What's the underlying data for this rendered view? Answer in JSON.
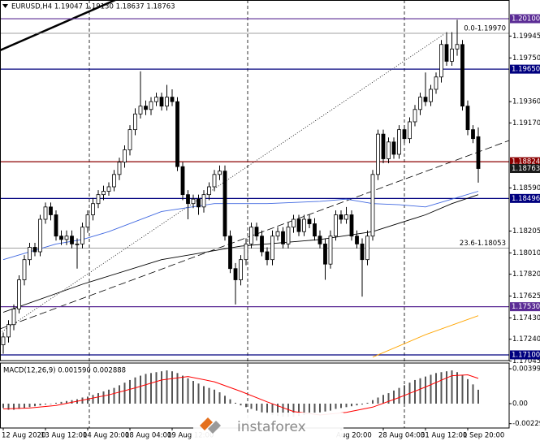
{
  "chart_data": [
    {
      "type": "candlestick",
      "title": "EURUSD,H4  1.19047 1.19130 1.18637 1.18763",
      "categories": [
        "12 Aug 2020",
        null,
        null,
        null,
        null,
        null,
        null,
        null,
        "13 Aug 12:00",
        null,
        null,
        null,
        null,
        null,
        null,
        null,
        "14 Aug 20:00",
        null,
        null,
        null,
        null,
        null,
        null,
        null,
        "18 Aug 04:00",
        null,
        null,
        null,
        null,
        null,
        null,
        null,
        "19 Aug 12:00",
        null,
        null,
        null,
        null,
        null,
        null,
        null,
        null,
        null,
        null,
        null,
        null,
        null,
        null,
        null,
        null,
        null,
        null,
        null,
        null,
        null,
        null,
        null,
        null,
        null,
        null,
        null,
        null,
        null,
        null,
        null,
        "Aug 20:00",
        null,
        null,
        null,
        null,
        null,
        null,
        null,
        "28 Aug 04:00",
        null,
        null,
        null,
        null,
        null,
        null,
        null,
        "31 Aug 12:00",
        null,
        null,
        null,
        null,
        null,
        null,
        null,
        "1 Sep 20:00",
        null,
        null
      ],
      "open": [
        1.1719,
        1.1726,
        1.1737,
        1.1751,
        1.1777,
        1.1795,
        1.1806,
        1.1802,
        1.1831,
        1.1842,
        1.1835,
        1.1816,
        1.1813,
        1.1816,
        1.1809,
        1.1809,
        1.1824,
        1.1835,
        1.1845,
        1.1853,
        1.1856,
        1.186,
        1.1871,
        1.1882,
        1.1893,
        1.1911,
        1.1925,
        1.1932,
        1.1929,
        1.1936,
        1.194,
        1.1932,
        1.194,
        1.1936,
        1.1878,
        1.1853,
        1.1845,
        1.1849,
        1.1842,
        1.1853,
        1.186,
        1.1871,
        1.1874,
        1.1816,
        1.1787,
        1.1777,
        1.1795,
        1.1809,
        1.1824,
        1.1816,
        1.1802,
        1.1795,
        1.1816,
        1.182,
        1.1809,
        1.1824,
        1.1831,
        1.182,
        1.1831,
        1.1827,
        1.1816,
        1.1809,
        1.1791,
        1.1816,
        1.1835,
        1.1831,
        1.1835,
        1.1816,
        1.1809,
        1.1795,
        1.1816,
        1.1871,
        1.1907,
        1.1885,
        1.19,
        1.1889,
        1.1911,
        1.1903,
        1.1918,
        1.1929,
        1.194,
        1.1936,
        1.1947,
        1.1958,
        1.1987,
        1.1972,
        1.1983,
        1.1987,
        1.1932,
        1.1911,
        1.19047
      ],
      "high": [
        1.173,
        1.1741,
        1.1755,
        1.1781,
        1.1799,
        1.181,
        1.181,
        1.1835,
        1.1846,
        1.1846,
        1.1839,
        1.1821,
        1.1821,
        1.1821,
        1.1814,
        1.1828,
        1.1839,
        1.185,
        1.1857,
        1.1861,
        1.1864,
        1.1875,
        1.1886,
        1.1897,
        1.1915,
        1.193,
        1.1963,
        1.1937,
        1.194,
        1.1944,
        1.1944,
        1.1951,
        1.1947,
        1.194,
        1.1882,
        1.1857,
        1.1853,
        1.1853,
        1.1857,
        1.1864,
        1.1875,
        1.1879,
        1.1879,
        1.1821,
        1.1792,
        1.1799,
        1.1814,
        1.1828,
        1.1828,
        1.1821,
        1.1806,
        1.1821,
        1.1824,
        1.1824,
        1.1828,
        1.1835,
        1.1835,
        1.1835,
        1.1835,
        1.1832,
        1.1821,
        1.1814,
        1.1821,
        1.1839,
        1.1839,
        1.1842,
        1.1839,
        1.1821,
        1.1814,
        1.1821,
        1.1875,
        1.1911,
        1.1911,
        1.1904,
        1.1904,
        1.1915,
        1.1915,
        1.1922,
        1.1933,
        1.1944,
        1.1962,
        1.1951,
        1.1962,
        1.1991,
        1.1998,
        1.1998,
        1.2009,
        1.1991,
        1.1937,
        1.1915,
        1.1913
      ],
      "low": [
        1.1711,
        1.1721,
        1.1732,
        1.1747,
        1.1772,
        1.179,
        1.1798,
        1.1798,
        1.1827,
        1.183,
        1.1812,
        1.1808,
        1.1808,
        1.1805,
        1.1787,
        1.1805,
        1.1819,
        1.183,
        1.1841,
        1.1848,
        1.1852,
        1.1856,
        1.1866,
        1.1877,
        1.1888,
        1.1906,
        1.1921,
        1.1924,
        1.1924,
        1.1932,
        1.1928,
        1.1928,
        1.1932,
        1.1874,
        1.1848,
        1.1831,
        1.1841,
        1.1835,
        1.1837,
        1.1848,
        1.1856,
        1.1866,
        1.1812,
        1.1783,
        1.1755,
        1.1772,
        1.179,
        1.1805,
        1.1812,
        1.1798,
        1.179,
        1.179,
        1.1812,
        1.1805,
        1.1805,
        1.1819,
        1.1816,
        1.1816,
        1.1823,
        1.1812,
        1.1805,
        1.1777,
        1.1787,
        1.1812,
        1.1827,
        1.1827,
        1.1812,
        1.1805,
        1.1762,
        1.179,
        1.1812,
        1.1866,
        1.1881,
        1.1881,
        1.1885,
        1.1885,
        1.1899,
        1.1899,
        1.1914,
        1.1924,
        1.1932,
        1.1932,
        1.1943,
        1.1953,
        1.1968,
        1.1968,
        1.1977,
        1.1928,
        1.1906,
        1.1899,
        1.18637
      ],
      "close": [
        1.1726,
        1.1737,
        1.1751,
        1.1777,
        1.1795,
        1.1806,
        1.1802,
        1.1831,
        1.1842,
        1.1835,
        1.1816,
        1.1813,
        1.1816,
        1.1809,
        1.1809,
        1.1824,
        1.1835,
        1.1845,
        1.1853,
        1.1856,
        1.186,
        1.1871,
        1.1882,
        1.1893,
        1.1911,
        1.1925,
        1.1932,
        1.1929,
        1.1936,
        1.194,
        1.1932,
        1.194,
        1.1936,
        1.1878,
        1.1853,
        1.1845,
        1.1849,
        1.1842,
        1.1853,
        1.186,
        1.1871,
        1.1874,
        1.1816,
        1.1787,
        1.1777,
        1.1795,
        1.1809,
        1.1824,
        1.1816,
        1.1802,
        1.1795,
        1.1816,
        1.182,
        1.1809,
        1.1824,
        1.1831,
        1.182,
        1.1831,
        1.1827,
        1.1816,
        1.1809,
        1.1791,
        1.1816,
        1.1835,
        1.1831,
        1.1835,
        1.1816,
        1.1809,
        1.1795,
        1.1816,
        1.1871,
        1.1907,
        1.1885,
        1.19,
        1.1889,
        1.1911,
        1.1903,
        1.1918,
        1.1929,
        1.194,
        1.1936,
        1.1947,
        1.1958,
        1.1987,
        1.1972,
        1.1983,
        1.1987,
        1.1932,
        1.1911,
        1.1903,
        1.18763
      ],
      "bull_color": "#ffffff",
      "bear_color": "#000000",
      "ylim": [
        1.17049,
        1.20267
      ],
      "yticks": [
        1.19945,
        {
          "value": 1.1975,
          "label": "1.19750"
        },
        {
          "value": 1.1936,
          "label": "1.19360"
        },
        {
          "value": 1.1917,
          "label": "1.19170"
        },
        {
          "value": 1.1859,
          "label": "1.18590"
        },
        1.18205,
        {
          "value": 1.1801,
          "label": "1.18010"
        },
        {
          "value": 1.1782,
          "label": "1.17820"
        },
        1.17625,
        {
          "value": 1.1743,
          "label": "1.17430"
        },
        {
          "value": 1.1724,
          "label": "1.17240"
        },
        1.17045
      ],
      "levels": [
        {
          "value": 1.201,
          "label": "1.20100",
          "color": "#5b2c95"
        },
        {
          "value": 1.1965,
          "label": "1.19650",
          "color": "#00007f"
        },
        {
          "value": 1.18824,
          "label": "1.18824",
          "color": "#8b0000"
        },
        {
          "value": 1.18496,
          "label": "1.18496",
          "color": "#00007f"
        },
        {
          "value": 1.1753,
          "label": "1.17530",
          "color": "#5b2c95"
        },
        {
          "value": 1.171,
          "label": "1.17100",
          "color": "#00007f"
        }
      ],
      "fib_levels": [
        {
          "value": 1.1997,
          "label": "0.0-1.19970"
        },
        {
          "value": 1.18053,
          "label": "23.6-1.18053"
        }
      ],
      "current_price": {
        "value": 1.18763,
        "label": "1.18763"
      },
      "moving_averages": [
        {
          "color": "#4169e1",
          "x": [
            0,
            10,
            15,
            20,
            30,
            40,
            50,
            60,
            65,
            70,
            75,
            80,
            85,
            90
          ],
          "values": [
            1.1795,
            1.1809,
            1.1813,
            1.182,
            1.1838,
            1.1845,
            1.1845,
            1.1847,
            1.1849,
            1.1845,
            1.1844,
            1.1842,
            1.1849,
            1.1856
          ]
        },
        {
          "color": "#000000",
          "x": [
            0,
            15,
            30,
            45,
            60,
            70,
            80,
            85,
            90
          ],
          "values": [
            1.1748,
            1.1773,
            1.1795,
            1.1807,
            1.1813,
            1.182,
            1.1835,
            1.1845,
            1.1853
          ]
        },
        {
          "color": "#ffa500",
          "x": [
            70,
            80,
            90
          ],
          "values": [
            1.1708,
            1.1728,
            1.1745
          ]
        }
      ]
    },
    {
      "type": "macd",
      "title": "MACD(12,26,9) 0.001590 0.002888",
      "values": [
        -0.0005,
        -0.0007,
        -0.0007,
        -0.0006,
        -0.0005,
        -0.0004,
        -0.0003,
        -0.0002,
        -0.0001,
        0,
        0.0001,
        0.0002,
        0.0003,
        0.0004,
        0.0005,
        0.0007,
        0.0008,
        0.001,
        0.0012,
        0.0014,
        0.0016,
        0.0018,
        0.0021,
        0.0024,
        0.0027,
        0.003,
        0.0032,
        0.0034,
        0.0035,
        0.0036,
        0.0037,
        0.0038,
        0.0037,
        0.0035,
        0.0032,
        0.0029,
        0.0026,
        0.0023,
        0.002,
        0.0018,
        0.0016,
        0.0013,
        0.0009,
        0.0005,
        0.0001,
        -0.0002,
        -0.0004,
        -0.0006,
        -0.0008,
        -0.001,
        -0.0012,
        -0.0013,
        -0.0014,
        -0.0015,
        -0.0015,
        -0.0015,
        -0.0014,
        -0.0013,
        -0.0012,
        -0.0011,
        -0.001,
        -0.0009,
        -0.0008,
        -0.0006,
        -0.0005,
        -0.0004,
        -0.0003,
        -0.0002,
        -0.0001,
        0.0001,
        0.0004,
        0.0007,
        0.001,
        0.0012,
        0.0015,
        0.0018,
        0.0021,
        0.0024,
        0.0027,
        0.0029,
        0.0031,
        0.0033,
        0.0035,
        0.0036,
        0.0037,
        0.0038,
        0.0036,
        0.0033,
        0.0028,
        0.0022,
        0.00159
      ],
      "color": "#555555",
      "signal": {
        "color": "#ff0000",
        "x": [
          0,
          5,
          10,
          15,
          20,
          25,
          30,
          35,
          40,
          45,
          50,
          55,
          60,
          65,
          70,
          75,
          80,
          85,
          88,
          90
        ],
        "values": [
          -0.0006,
          -0.0005,
          -0.0002,
          0.0004,
          0.001,
          0.0018,
          0.0027,
          0.0031,
          0.0025,
          0.0014,
          0.0002,
          -0.0009,
          -0.0013,
          -0.001,
          -0.0004,
          0.0007,
          0.0019,
          0.0032,
          0.0033,
          0.002888
        ]
      },
      "ylim": [
        -0.002787,
        0.004645
      ],
      "yticks": [
        0.003994,
        {
          "value": 0,
          "label": "0.00"
        },
        -0.002293
      ]
    }
  ],
  "watermark": "instaforex"
}
